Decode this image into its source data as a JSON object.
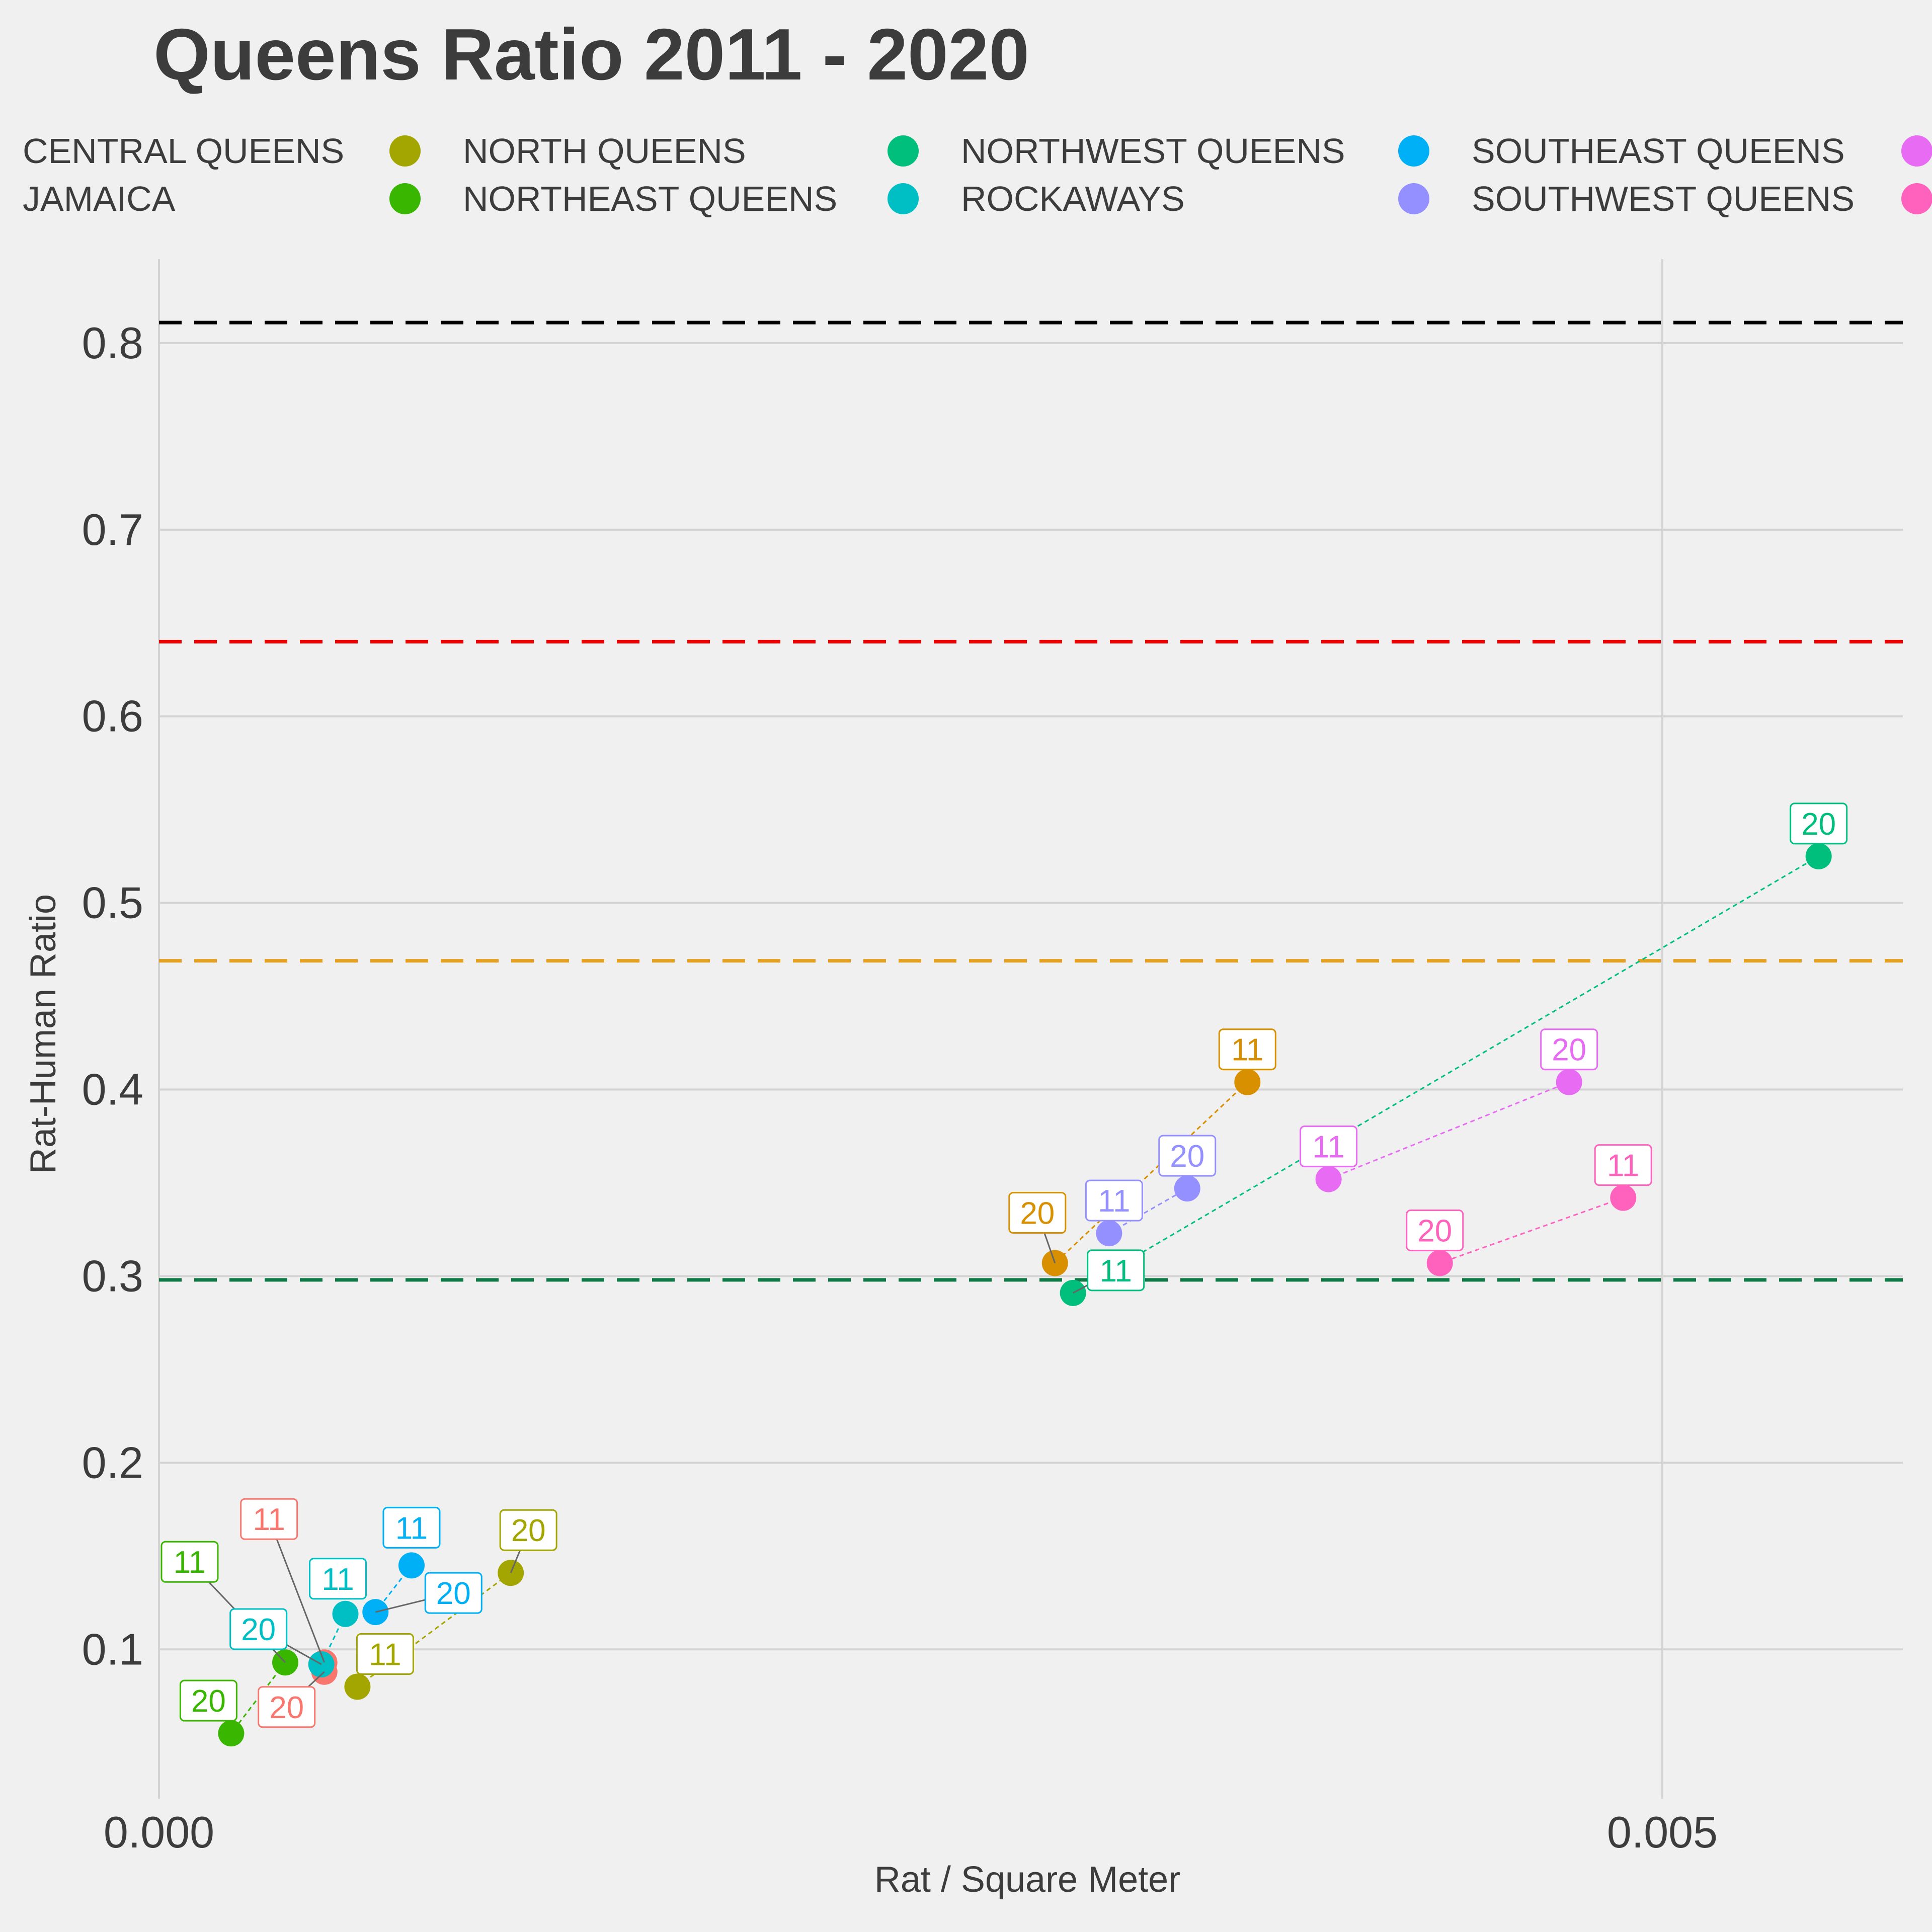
{
  "chart_data": {
    "type": "scatter",
    "title": "Queens Ratio 2011 - 2020",
    "xlabel": "Rat / Square Meter",
    "ylabel": "Rat-Human Ratio",
    "xlim": [
      0,
      0.0058
    ],
    "ylim": [
      0.02,
      0.845
    ],
    "x_ticks": [
      {
        "value": 0,
        "label": "0.000"
      },
      {
        "value": 0.005,
        "label": "0.005"
      }
    ],
    "y_ticks": [
      {
        "value": 0.1,
        "label": "0.1"
      },
      {
        "value": 0.2,
        "label": "0.2"
      },
      {
        "value": 0.3,
        "label": "0.3"
      },
      {
        "value": 0.4,
        "label": "0.4"
      },
      {
        "value": 0.5,
        "label": "0.5"
      },
      {
        "value": 0.6,
        "label": "0.6"
      },
      {
        "value": 0.7,
        "label": "0.7"
      },
      {
        "value": 0.8,
        "label": "0.8"
      }
    ],
    "grid": true,
    "legend": {
      "placement": "top",
      "layout": "columns-wrap",
      "entries": [
        {
          "label": "CENTRAL QUEENS",
          "color": "#f8766d"
        },
        {
          "label": "JAMAICA",
          "color": "#d89000"
        },
        {
          "label": "NORTH QUEENS",
          "color": "#a3a500"
        },
        {
          "label": "NORTHEAST QUEENS",
          "color": "#39b600"
        },
        {
          "label": "NORTHWEST QUEENS",
          "color": "#00bf7d"
        },
        {
          "label": "ROCKAWAYS",
          "color": "#00bfc4"
        },
        {
          "label": "SOUTHEAST QUEENS",
          "color": "#00b0f6"
        },
        {
          "label": "SOUTHWEST QUEENS",
          "color": "#9590ff"
        },
        {
          "label": "",
          "color": "#e76bf3"
        },
        {
          "label": "",
          "color": "#ff62bc"
        }
      ]
    },
    "reference_lines": [
      {
        "y": 0.811,
        "color": "#000000"
      },
      {
        "y": 0.64,
        "color": "#ee0000"
      },
      {
        "y": 0.469,
        "color": "#e5a020"
      },
      {
        "y": 0.298,
        "color": "#0d7a45"
      }
    ],
    "series": [
      {
        "name": "CENTRAL QUEENS",
        "color": "#f8766d",
        "points": [
          {
            "x": 0.00055,
            "y": 0.093,
            "label": "11"
          },
          {
            "x": 0.00055,
            "y": 0.088,
            "label": "20"
          }
        ]
      },
      {
        "name": "JAMAICA",
        "color": "#d89000",
        "points": [
          {
            "x": 0.00362,
            "y": 0.404,
            "label": "11"
          },
          {
            "x": 0.00298,
            "y": 0.307,
            "label": "20"
          }
        ]
      },
      {
        "name": "NORTH QUEENS",
        "color": "#a3a500",
        "points": [
          {
            "x": 0.00066,
            "y": 0.08,
            "label": "11"
          },
          {
            "x": 0.00117,
            "y": 0.141,
            "label": "20"
          }
        ]
      },
      {
        "name": "NORTHEAST QUEENS",
        "color": "#39b600",
        "points": [
          {
            "x": 0.00042,
            "y": 0.093,
            "label": "11"
          },
          {
            "x": 0.00024,
            "y": 0.055,
            "label": "20"
          }
        ]
      },
      {
        "name": "NORTHWEST QUEENS",
        "color": "#00bf7d",
        "points": [
          {
            "x": 0.00304,
            "y": 0.291,
            "label": "11"
          },
          {
            "x": 0.00552,
            "y": 0.525,
            "label": "20"
          }
        ]
      },
      {
        "name": "ROCKAWAYS",
        "color": "#00bfc4",
        "points": [
          {
            "x": 0.00062,
            "y": 0.119,
            "label": "11"
          },
          {
            "x": 0.00054,
            "y": 0.092,
            "label": "20"
          }
        ]
      },
      {
        "name": "SOUTHEAST QUEENS",
        "color": "#00b0f6",
        "points": [
          {
            "x": 0.00084,
            "y": 0.145,
            "label": "11"
          },
          {
            "x": 0.00072,
            "y": 0.12,
            "label": "20"
          }
        ]
      },
      {
        "name": "SOUTHWEST QUEENS",
        "color": "#9590ff",
        "points": [
          {
            "x": 0.00316,
            "y": 0.323,
            "label": "11"
          },
          {
            "x": 0.00342,
            "y": 0.347,
            "label": "20"
          }
        ]
      },
      {
        "color": "#e76bf3",
        "points": [
          {
            "x": 0.00389,
            "y": 0.352,
            "label": "11"
          },
          {
            "x": 0.00469,
            "y": 0.404,
            "label": "20"
          }
        ]
      },
      {
        "color": "#ff62bc",
        "points": [
          {
            "x": 0.00487,
            "y": 0.342,
            "label": "11"
          },
          {
            "x": 0.00426,
            "y": 0.307,
            "label": "20"
          }
        ]
      }
    ]
  }
}
